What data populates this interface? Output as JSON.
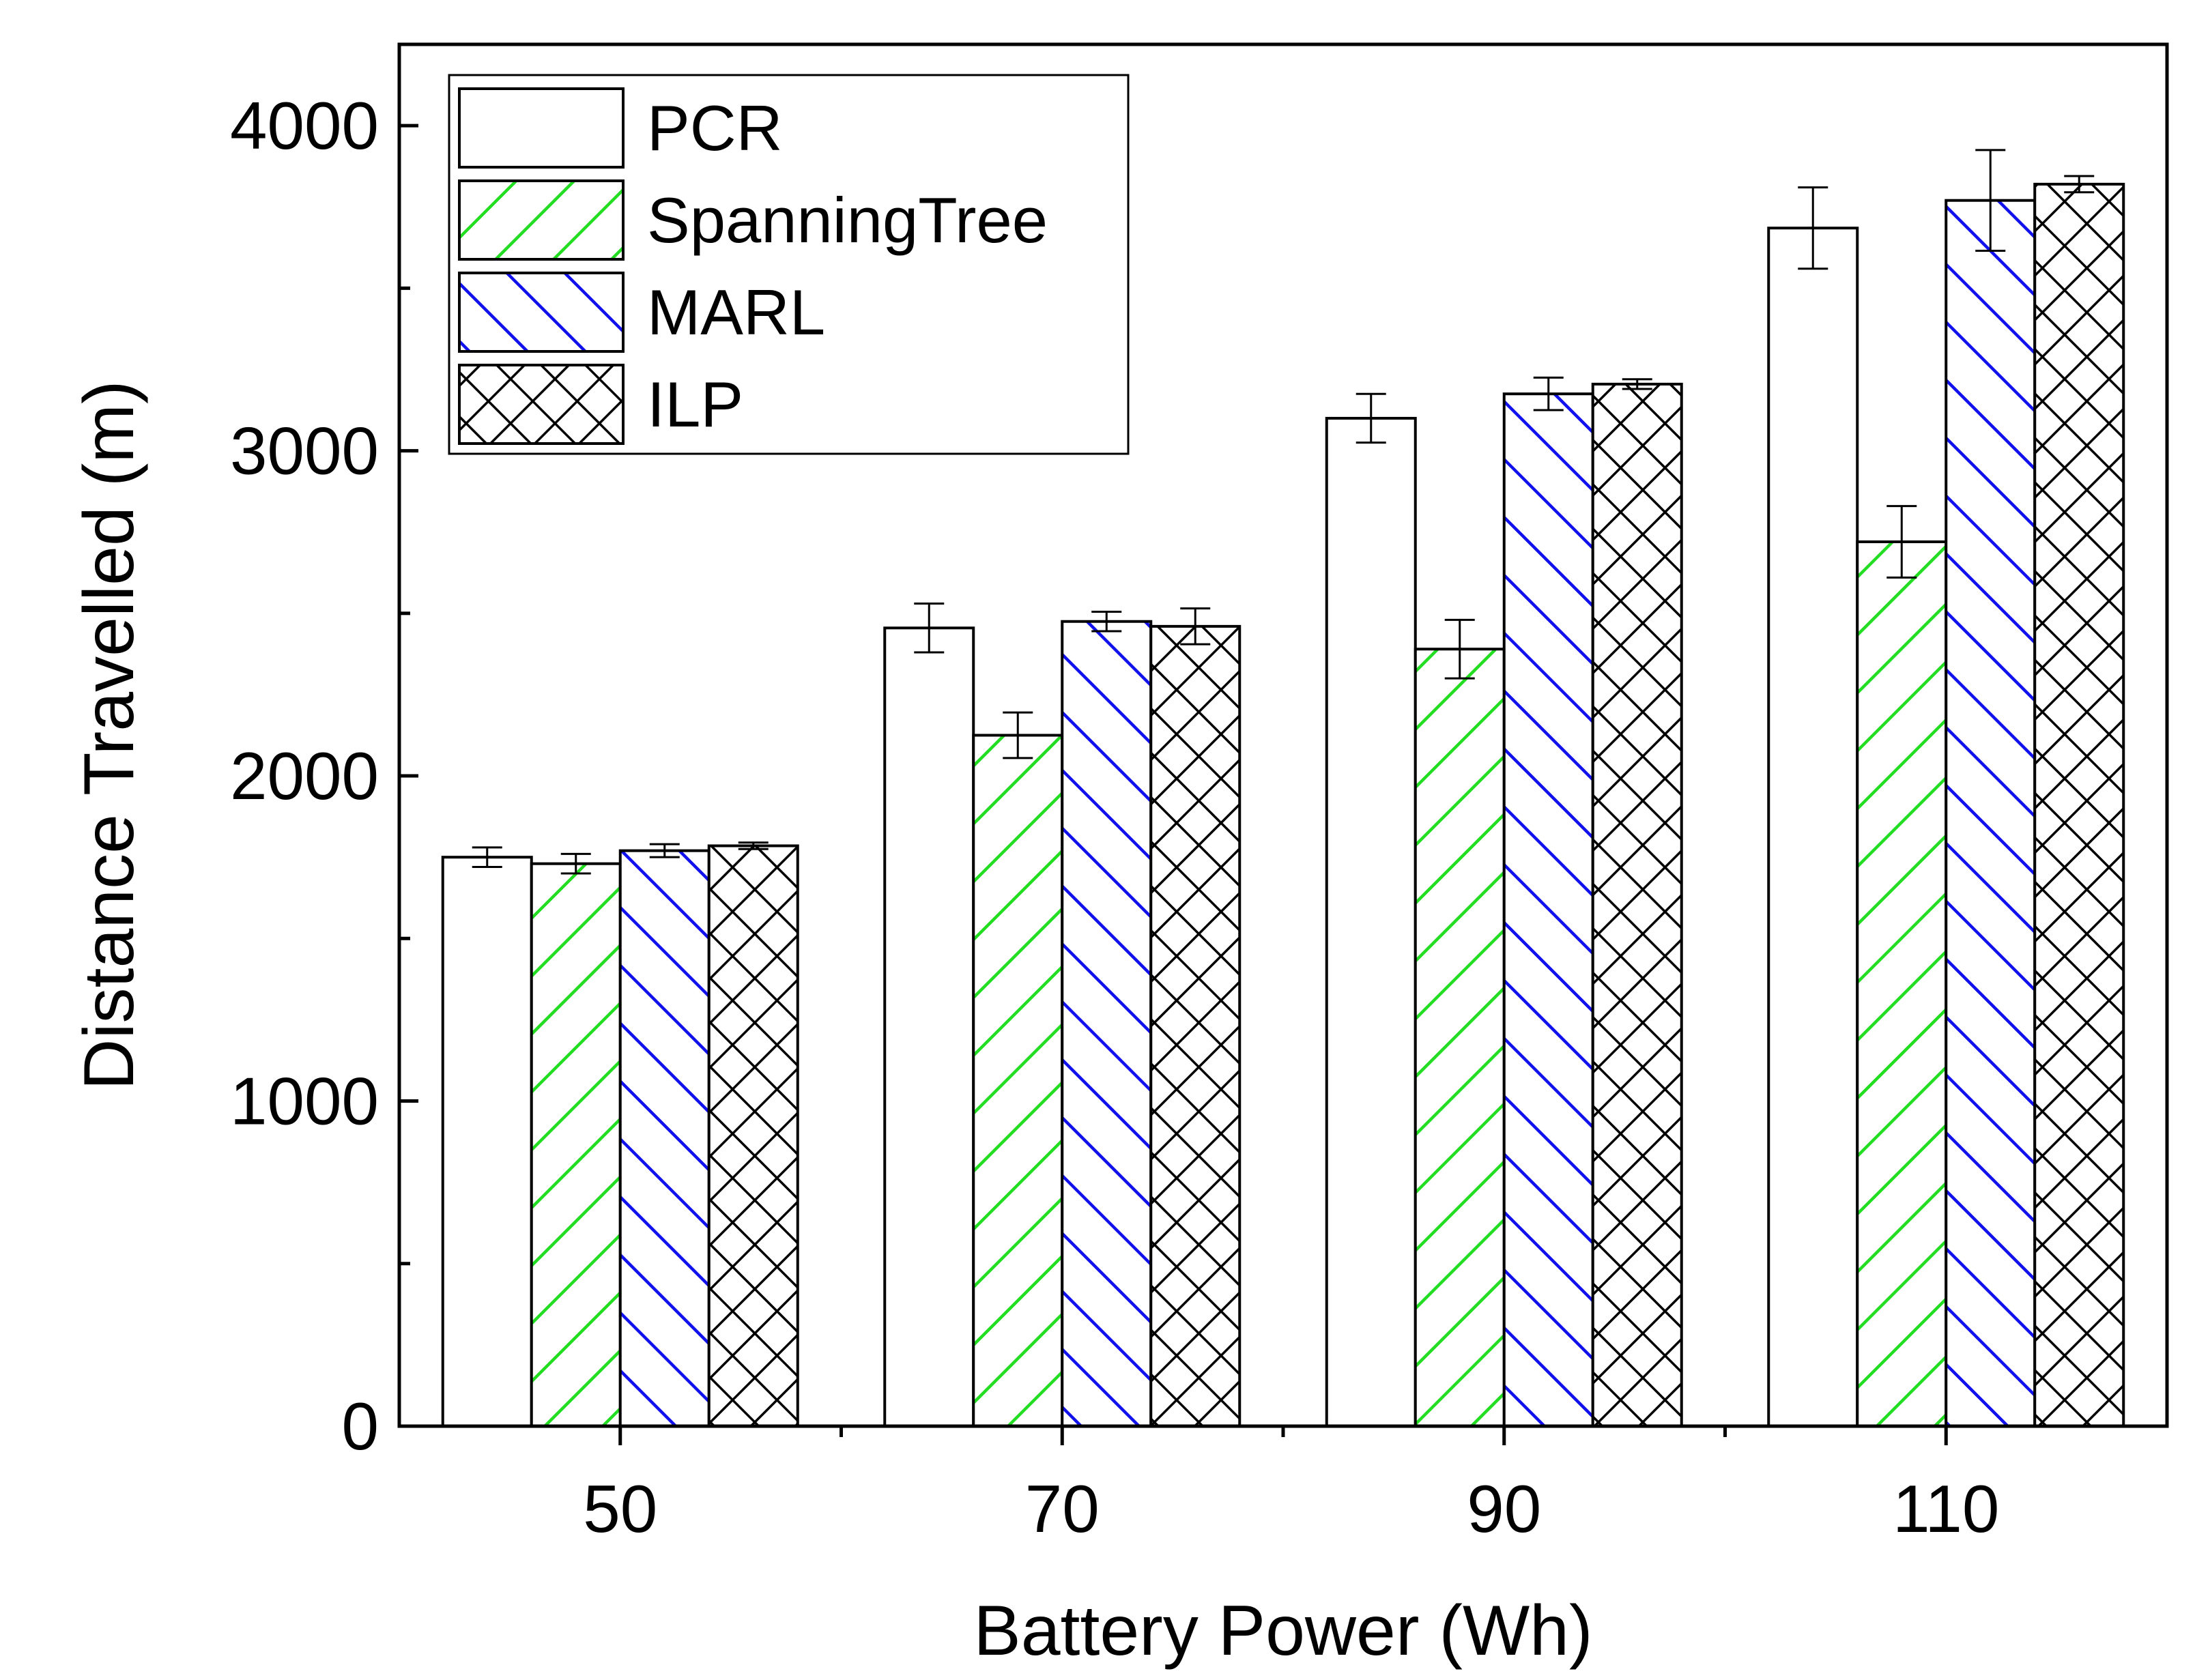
{
  "chart_data": {
    "type": "bar",
    "xlabel": "Battery Power (Wh)",
    "ylabel": "Distance Travelled (m)",
    "categories": [
      "50",
      "70",
      "90",
      "110"
    ],
    "ylim": [
      0,
      4250
    ],
    "yticks": [
      0,
      1000,
      2000,
      3000,
      4000
    ],
    "legend_position": "top-left",
    "grid": false,
    "series": [
      {
        "name": "PCR",
        "values": [
          1750,
          2455,
          3100,
          3685
        ],
        "errors": [
          30,
          75,
          75,
          125
        ],
        "fill": "#ffffff",
        "hatch": "none",
        "hatch_color": "#000000"
      },
      {
        "name": "SpanningTree",
        "values": [
          1730,
          2125,
          2390,
          2720
        ],
        "errors": [
          30,
          70,
          90,
          110
        ],
        "fill": "#ffffff",
        "hatch": "forward-diagonal",
        "hatch_color": "#22dd22"
      },
      {
        "name": "MARL",
        "values": [
          1770,
          2475,
          3175,
          3770
        ],
        "errors": [
          20,
          30,
          50,
          155
        ],
        "fill": "#ffffff",
        "hatch": "back-diagonal",
        "hatch_color": "#1111ee"
      },
      {
        "name": "ILP",
        "values": [
          1785,
          2460,
          3205,
          3820
        ],
        "errors": [
          10,
          55,
          15,
          25
        ],
        "fill": "#ffffff",
        "hatch": "crosshatch",
        "hatch_color": "#000000"
      }
    ]
  }
}
